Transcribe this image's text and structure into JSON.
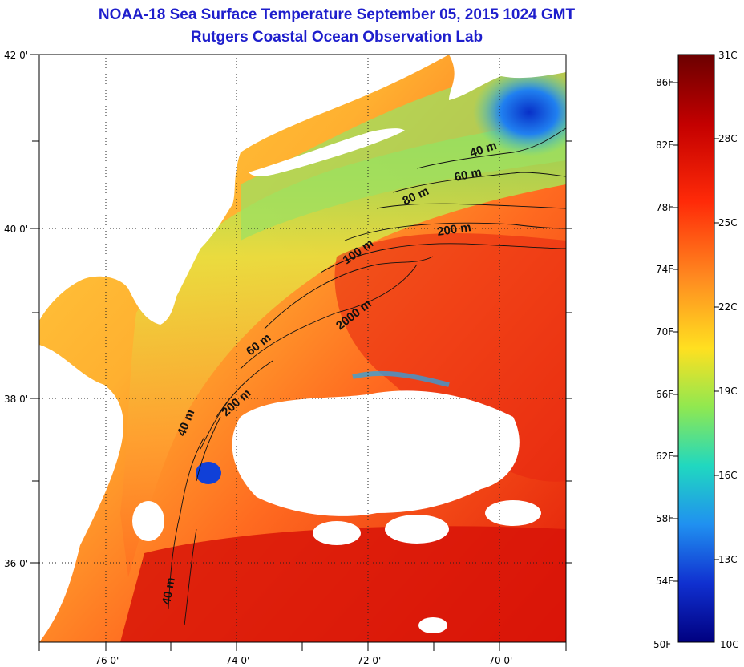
{
  "title": {
    "line1": "NOAA-18 Sea Surface Temperature September 05, 2015 1024 GMT",
    "line2": "Rutgers Coastal Ocean Observation Lab"
  },
  "map": {
    "lat_labels": [
      "42 0'",
      "40 0'",
      "38 0'",
      "36 0'"
    ],
    "lon_labels": [
      "-76 0'",
      "-74 0'",
      "-72 0'",
      "-70 0'"
    ],
    "contour_labels": [
      "40 m",
      "60 m",
      "80 m",
      "200 m",
      "100 m",
      "2000 m",
      "60 m",
      "200 m",
      "40 m",
      "40 m"
    ],
    "land_color": "#ffffff",
    "cloud_color": "#ffffff"
  },
  "colorbar": {
    "fahrenheit_labels": [
      "86F",
      "82F",
      "78F",
      "74F",
      "70F",
      "66F",
      "62F",
      "58F",
      "54F",
      "50F"
    ],
    "celsius_labels": [
      "31C",
      "28C",
      "25C",
      "22C",
      "19C",
      "16C",
      "13C",
      "10C"
    ],
    "colors": [
      "#6b0000",
      "#c40000",
      "#ff3a10",
      "#ff8a20",
      "#ffd220",
      "#c8f040",
      "#40e0a0",
      "#20a8f0",
      "#1040d8",
      "#000080"
    ]
  }
}
